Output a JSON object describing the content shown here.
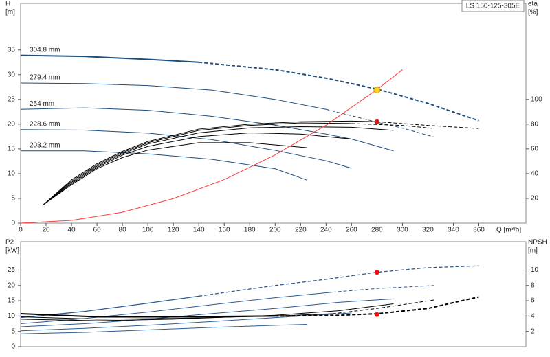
{
  "chart_data": [
    {
      "type": "line",
      "title": "LS 150-125-305E",
      "ylabel": "H",
      "yunit": "[m]",
      "y2label": "eta",
      "y2unit": "[%]",
      "xlabel": "Q [m³/h]",
      "xlim": [
        0,
        397
      ],
      "ylim": [
        0,
        44.4
      ],
      "y2lim": [
        0,
        177.6
      ],
      "xticks": [
        0,
        20,
        40,
        60,
        80,
        100,
        120,
        140,
        160,
        180,
        200,
        220,
        240,
        260,
        280,
        300,
        320,
        340,
        360
      ],
      "yticks": [
        0,
        5,
        10,
        15,
        20,
        25,
        30,
        35
      ],
      "y2ticks": [
        20,
        40,
        60,
        80,
        100
      ],
      "series": [
        {
          "name": "304.8 mm",
          "color": "#1d4e7e",
          "width": 2,
          "dashed_after": 140,
          "x": [
            0,
            50,
            100,
            140,
            200,
            240,
            280,
            320,
            360
          ],
          "values": [
            33.9,
            33.7,
            33.1,
            32.5,
            31.0,
            29.3,
            27.1,
            24.2,
            20.7
          ]
        },
        {
          "name": "279.4 mm",
          "color": "#1d4e7e",
          "width": 1,
          "dashed_after": 240,
          "x": [
            0,
            50,
            100,
            150,
            200,
            240,
            280,
            300,
            325
          ],
          "values": [
            28.3,
            28.2,
            27.8,
            26.9,
            25.0,
            23.0,
            20.4,
            19.2,
            17.4
          ]
        },
        {
          "name": "254 mm",
          "color": "#1d4e7e",
          "width": 1,
          "x": [
            0,
            50,
            100,
            150,
            200,
            240,
            260,
            293
          ],
          "values": [
            23.0,
            23.3,
            22.8,
            21.6,
            19.8,
            18.0,
            17.0,
            14.6
          ]
        },
        {
          "name": "228.6 mm",
          "color": "#1d4e7e",
          "width": 1,
          "x": [
            0,
            50,
            100,
            150,
            200,
            240,
            260
          ],
          "values": [
            18.9,
            18.8,
            18.2,
            16.9,
            14.7,
            12.6,
            11.1
          ]
        },
        {
          "name": "203.2 mm",
          "color": "#1d4e7e",
          "width": 1,
          "x": [
            0,
            50,
            100,
            150,
            200,
            225
          ],
          "values": [
            14.6,
            14.6,
            14.0,
            12.9,
            11.0,
            8.7
          ]
        },
        {
          "color": "#000000",
          "width": 1,
          "axis": "y2",
          "dashed_after": 280,
          "x": [
            18,
            40,
            60,
            80,
            100,
            140,
            180,
            220,
            260,
            280,
            320,
            360
          ],
          "values": [
            15,
            35,
            48,
            58,
            66,
            76,
            80,
            82,
            82.5,
            82,
            79,
            76.5
          ]
        },
        {
          "color": "#000000",
          "width": 1,
          "axis": "y2",
          "dashed_after": 260,
          "x": [
            18,
            40,
            60,
            80,
            100,
            140,
            180,
            220,
            260,
            300,
            325
          ],
          "values": [
            15,
            34,
            47,
            57,
            65,
            75,
            79,
            81,
            80.5,
            79,
            76.5
          ]
        },
        {
          "color": "#000000",
          "width": 1,
          "axis": "y2",
          "x": [
            18,
            40,
            60,
            80,
            100,
            140,
            180,
            220,
            260,
            293
          ],
          "values": [
            15,
            33,
            46,
            56,
            64,
            73,
            77,
            78,
            77.5,
            75
          ]
        },
        {
          "color": "#000000",
          "width": 1,
          "axis": "y2",
          "x": [
            18,
            40,
            60,
            80,
            100,
            140,
            180,
            220,
            260
          ],
          "values": [
            15,
            32,
            45,
            55,
            62,
            70,
            73,
            72,
            68
          ]
        },
        {
          "color": "#000000",
          "width": 1,
          "axis": "y2",
          "x": [
            18,
            40,
            60,
            80,
            100,
            140,
            180,
            225
          ],
          "values": [
            15,
            31,
            44,
            53,
            59,
            65,
            65,
            61
          ]
        },
        {
          "color": "#ff3b3b",
          "width": 1,
          "x": [
            0,
            40,
            80,
            120,
            160,
            200,
            240,
            280,
            300
          ],
          "values": [
            0,
            0.55,
            2.2,
            4.96,
            8.8,
            13.8,
            19.8,
            27.0,
            31.0
          ]
        }
      ],
      "operating_points": [
        {
          "x": 280,
          "value": 26.9,
          "color": "#ffd21f"
        },
        {
          "x": 280,
          "value": 82,
          "axis": "y2",
          "color": "#ee1111"
        }
      ]
    },
    {
      "type": "line",
      "ylabel": "P2",
      "yunit": "[kW]",
      "y2label": "NPSH",
      "y2unit": "[m]",
      "xlim": [
        0,
        397
      ],
      "ylim": [
        0,
        34.3
      ],
      "y2lim": [
        0,
        13.72
      ],
      "yticks": [
        0,
        5,
        10,
        15,
        20,
        25
      ],
      "y2ticks": [
        2,
        4,
        6,
        8,
        10
      ],
      "series": [
        {
          "color": "#2a5a92",
          "width": 1.3,
          "dashed_after": 140,
          "x": [
            0,
            50,
            100,
            140,
            200,
            240,
            280,
            320,
            360
          ],
          "values": [
            9.5,
            11.5,
            14.2,
            16.5,
            20.0,
            22.0,
            24.3,
            25.8,
            26.4
          ]
        },
        {
          "color": "#2a5a92",
          "width": 1,
          "dashed_after": 245,
          "x": [
            0,
            50,
            100,
            150,
            200,
            245,
            280,
            325
          ],
          "values": [
            7.5,
            9.2,
            11.3,
            13.7,
            16.0,
            17.8,
            19.0,
            20.0
          ]
        },
        {
          "color": "#2a5a92",
          "width": 1,
          "x": [
            0,
            50,
            100,
            150,
            200,
            250,
            293
          ],
          "values": [
            6.5,
            7.5,
            9.0,
            10.8,
            12.5,
            14.5,
            15.6
          ]
        },
        {
          "color": "#2a5a92",
          "width": 1,
          "x": [
            0,
            50,
            100,
            150,
            200,
            260
          ],
          "values": [
            5.2,
            6.0,
            7.0,
            8.2,
            9.5,
            11.0
          ]
        },
        {
          "color": "#2a5a92",
          "width": 1,
          "x": [
            0,
            50,
            100,
            150,
            225
          ],
          "values": [
            4.2,
            4.7,
            5.5,
            6.3,
            7.3
          ]
        },
        {
          "color": "#000000",
          "width": 2,
          "axis": "y2",
          "dashed_after": 200,
          "x": [
            0,
            60,
            120,
            200,
            250,
            280,
            320,
            360
          ],
          "values": [
            4.3,
            3.9,
            3.9,
            4.0,
            4.1,
            4.3,
            5.0,
            6.5
          ]
        },
        {
          "color": "#000000",
          "width": 1,
          "axis": "y2",
          "dashed_after": 245,
          "x": [
            0,
            60,
            120,
            200,
            245,
            280,
            325
          ],
          "values": [
            3.9,
            3.6,
            3.7,
            4.0,
            4.3,
            5.0,
            6.1
          ]
        },
        {
          "color": "#000000",
          "width": 1,
          "axis": "y2",
          "x": [
            0,
            60,
            120,
            200,
            250,
            293
          ],
          "values": [
            3.6,
            3.4,
            3.6,
            4.1,
            4.7,
            5.6
          ]
        }
      ],
      "operating_points": [
        {
          "x": 280,
          "value": 24.3,
          "color": "#ee1111"
        },
        {
          "x": 280,
          "value": 4.2,
          "axis": "y2",
          "color": "#ee1111"
        }
      ]
    }
  ]
}
